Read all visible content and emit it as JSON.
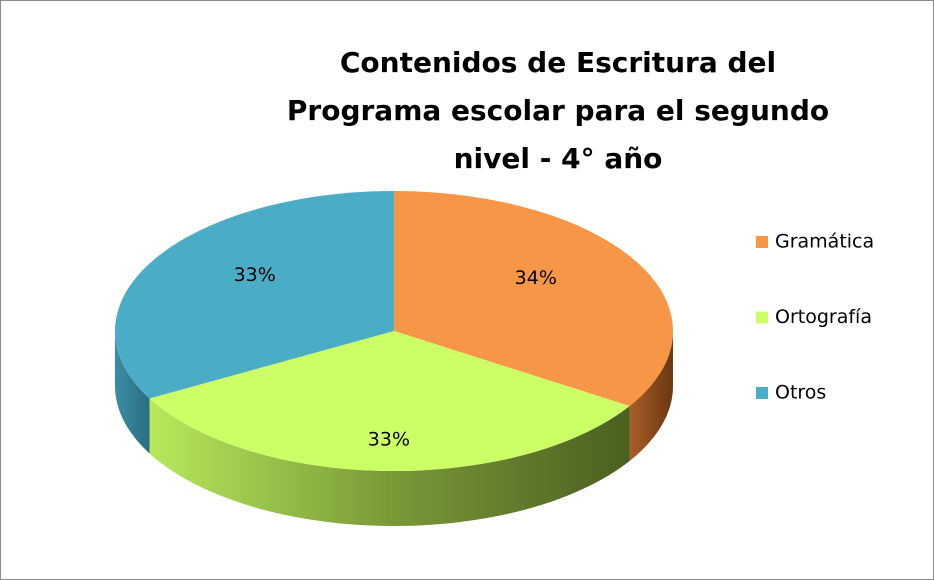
{
  "chart_data": {
    "type": "pie",
    "title": "Contenidos  de Escritura del Programa escolar para el segundo nivel - 4° año",
    "categories": [
      "Gramática",
      "Ortografía",
      "Otros"
    ],
    "values": [
      34,
      33,
      33
    ],
    "value_labels": [
      "34%",
      "33%",
      "33%"
    ],
    "colors": [
      "#f79646",
      "#ccff66",
      "#4bacc6"
    ],
    "legend": "right"
  }
}
